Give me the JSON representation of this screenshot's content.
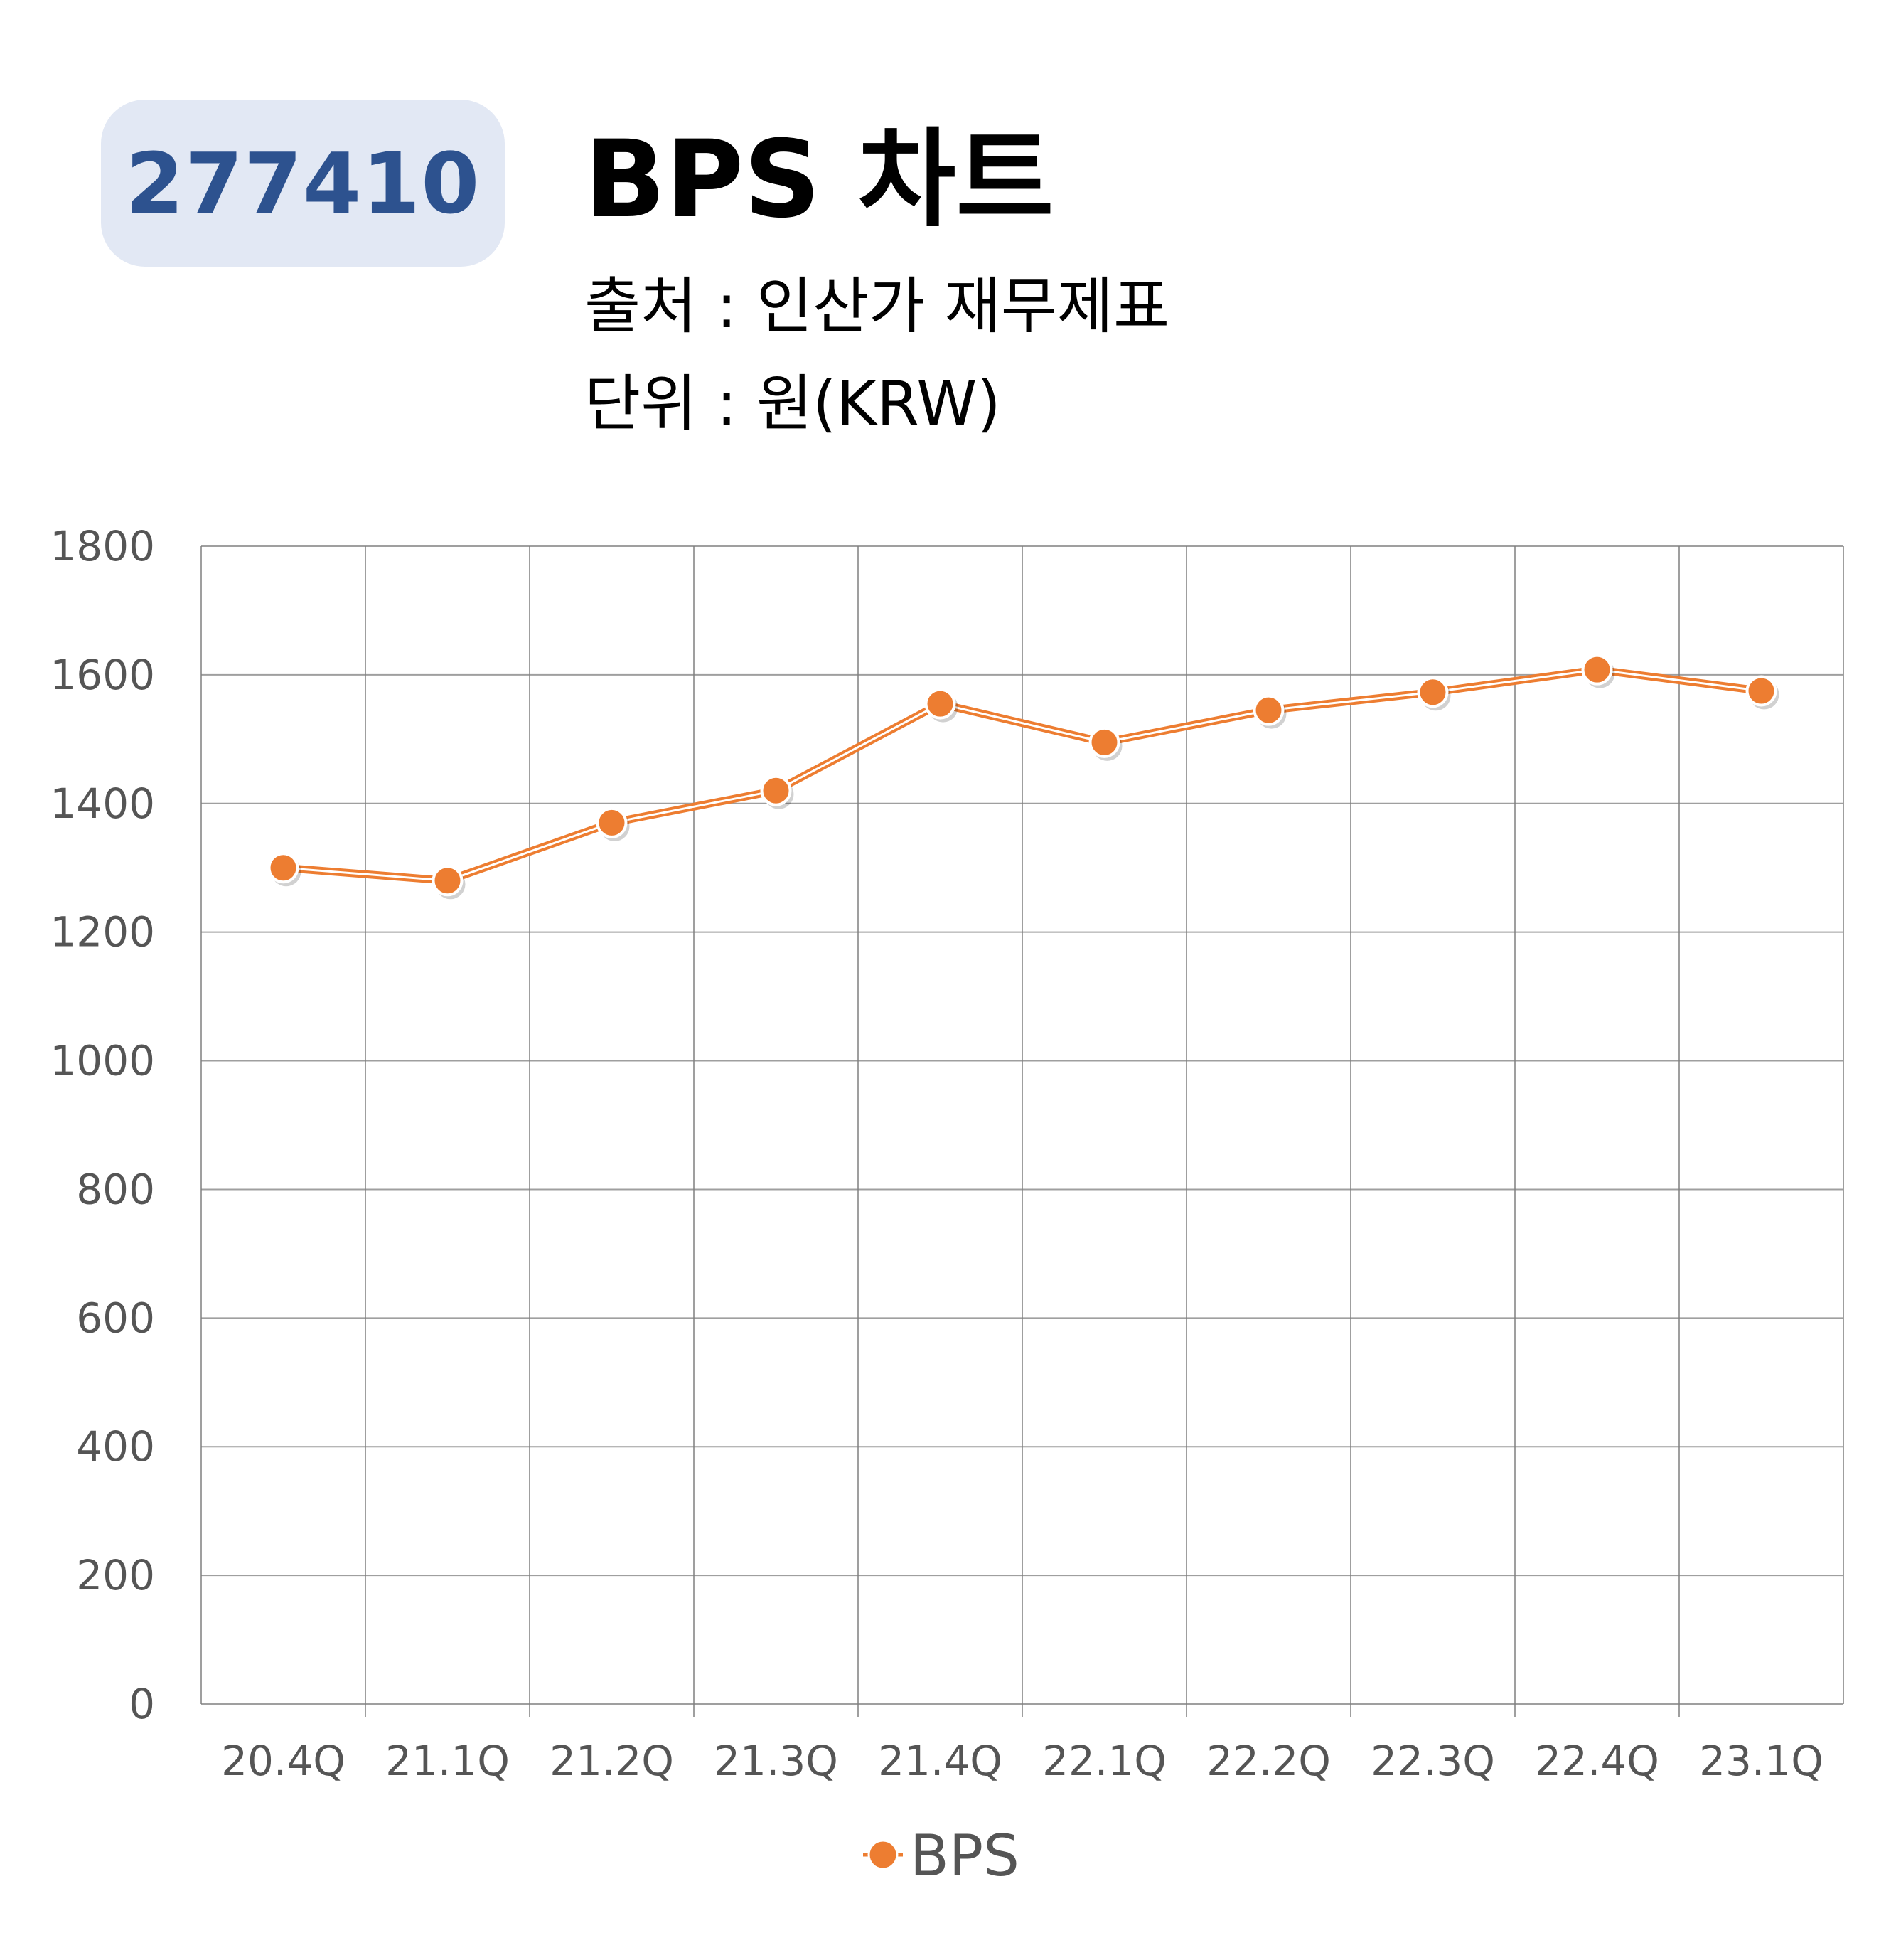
{
  "header": {
    "ticker": "277410",
    "title": "BPS 차트",
    "source": "출처 : 인산가 재무제표",
    "unit": "단위 : 원(KRW)"
  },
  "colors": {
    "badge_bg": "#e2e8f4",
    "badge_text": "#2d528f",
    "series": "#ed7d31",
    "grid": "#7f7f7f",
    "tick_text": "#555555"
  },
  "chart_data": {
    "type": "line",
    "categories": [
      "20.4Q",
      "21.1Q",
      "21.2Q",
      "21.3Q",
      "21.4Q",
      "22.1Q",
      "22.2Q",
      "22.3Q",
      "22.4Q",
      "23.1Q"
    ],
    "series": [
      {
        "name": "BPS",
        "values": [
          1300,
          1280,
          1370,
          1420,
          1555,
          1495,
          1545,
          1573,
          1608,
          1575
        ]
      }
    ],
    "ylim": [
      0,
      1800
    ],
    "yticks": [
      0,
      200,
      400,
      600,
      800,
      1000,
      1200,
      1400,
      1600,
      1800
    ],
    "grid": true,
    "legend_position": "bottom"
  }
}
